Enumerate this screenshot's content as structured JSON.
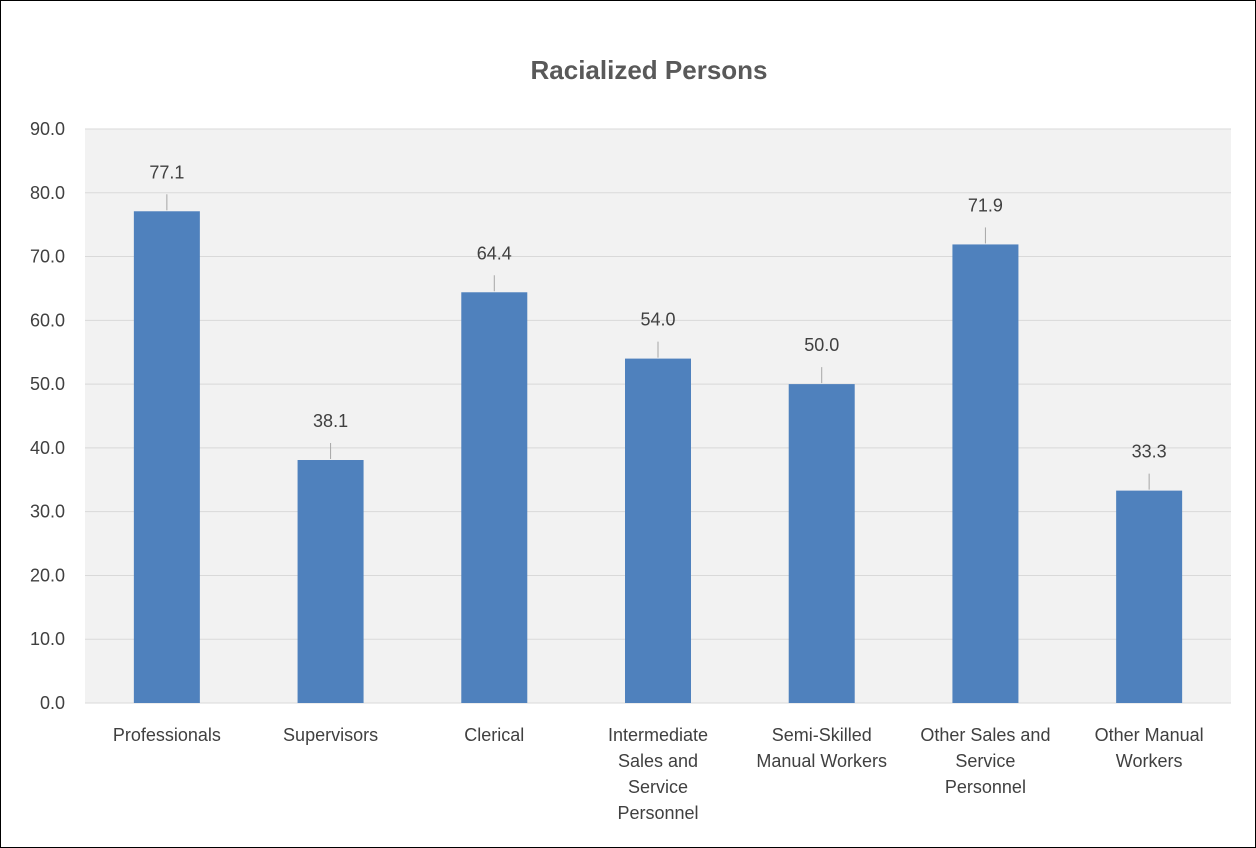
{
  "chart_data": {
    "type": "bar",
    "title": "Racialized Persons",
    "xlabel": "",
    "ylabel": "",
    "categories": [
      [
        "Professionals"
      ],
      [
        "Supervisors"
      ],
      [
        "Clerical"
      ],
      [
        "Intermediate",
        "Sales and",
        "Service",
        "Personnel"
      ],
      [
        "Semi-Skilled",
        "Manual Workers"
      ],
      [
        "Other Sales and",
        "Service",
        "Personnel"
      ],
      [
        "Other Manual",
        "Workers"
      ]
    ],
    "values": [
      77.1,
      38.1,
      64.4,
      54.0,
      50.0,
      71.9,
      33.3
    ],
    "value_labels": [
      "77.1",
      "38.1",
      "64.4",
      "54.0",
      "50.0",
      "71.9",
      "33.3"
    ],
    "ylim": [
      0,
      90
    ],
    "yticks": [
      0,
      10,
      20,
      30,
      40,
      50,
      60,
      70,
      80,
      90
    ],
    "ytick_labels": [
      "0.0",
      "10.0",
      "20.0",
      "30.0",
      "40.0",
      "50.0",
      "60.0",
      "70.0",
      "80.0",
      "90.0"
    ],
    "grid": true,
    "legend": "none",
    "colors": {
      "bar": "#4f81bd",
      "plot_background": "#f2f2f2",
      "gridline": "#d9d9d9",
      "text": "#404040",
      "title": "#595959",
      "leader_line": "#a6a6a6"
    }
  }
}
